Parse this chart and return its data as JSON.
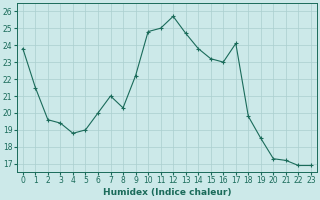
{
  "x": [
    0,
    1,
    2,
    3,
    4,
    5,
    6,
    7,
    8,
    9,
    10,
    11,
    12,
    13,
    14,
    15,
    16,
    17,
    18,
    19,
    20,
    21,
    22,
    23
  ],
  "y": [
    23.8,
    21.5,
    19.6,
    19.4,
    18.8,
    19.0,
    20.0,
    21.0,
    20.3,
    22.2,
    24.8,
    25.0,
    25.7,
    24.7,
    23.8,
    23.2,
    23.0,
    24.1,
    19.8,
    18.5,
    17.3,
    17.2,
    16.9,
    16.9
  ],
  "line_color": "#1a6b5a",
  "bg_color": "#cce9e9",
  "grid_color": "#aacfcf",
  "xlabel": "Humidex (Indice chaleur)",
  "xlim": [
    -0.5,
    23.5
  ],
  "ylim": [
    16.5,
    26.5
  ],
  "yticks": [
    17,
    18,
    19,
    20,
    21,
    22,
    23,
    24,
    25,
    26
  ],
  "xticks": [
    0,
    1,
    2,
    3,
    4,
    5,
    6,
    7,
    8,
    9,
    10,
    11,
    12,
    13,
    14,
    15,
    16,
    17,
    18,
    19,
    20,
    21,
    22,
    23
  ],
  "label_fontsize": 6.5,
  "tick_fontsize": 5.5
}
